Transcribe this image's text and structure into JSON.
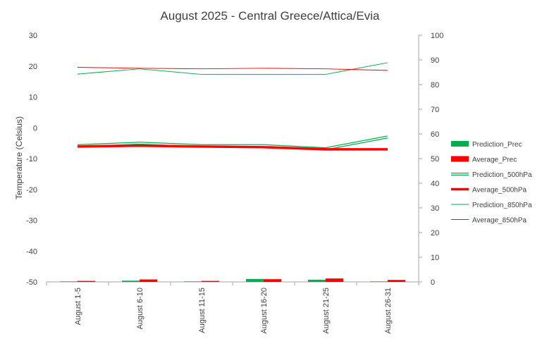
{
  "chart_data": {
    "type": "line",
    "title": "August 2025 - Central Greece/Attica/Evia",
    "ylabel": "Temperature  (Celsius)",
    "xlabel": "",
    "ylim": [
      -50,
      30
    ],
    "y2lim": [
      0,
      100
    ],
    "yticks": [
      "30",
      "20",
      "10",
      "0",
      "-10",
      "-20",
      "-30",
      "-40",
      "-50"
    ],
    "y2ticks": [
      "100",
      "90",
      "80",
      "70",
      "60",
      "50",
      "40",
      "30",
      "20",
      "10",
      "0"
    ],
    "categories": [
      "August 1-5",
      "August 6-10",
      "August 11-15",
      "August 16-20",
      "August 21-25",
      "August 26-31"
    ],
    "grid": false,
    "legend_position": "right",
    "series": [
      {
        "name": "Prediction_Prec",
        "kind": "bar",
        "axis": "right",
        "color": "#00b050",
        "values": [
          0.2,
          0.5,
          0.2,
          1.2,
          0.9,
          0.2
        ]
      },
      {
        "name": "Average_Prec",
        "kind": "bar",
        "axis": "right",
        "color": "#ff0000",
        "values": [
          0.4,
          1.0,
          0.4,
          1.1,
          1.4,
          0.8
        ]
      },
      {
        "name": "Prediction_500hPa",
        "kind": "double-line",
        "axis": "left",
        "color": "#00b050",
        "values": [
          -5.8,
          -5.0,
          -5.8,
          -5.8,
          -6.8,
          -3.0
        ]
      },
      {
        "name": "Average_500hPa",
        "kind": "thick-line",
        "axis": "left",
        "color": "#ff0000",
        "values": [
          -6.1,
          -5.8,
          -6.1,
          -6.3,
          -7.0,
          -7.0
        ]
      },
      {
        "name": "Prediction_850hPa",
        "kind": "line",
        "axis": "left",
        "color": "#00b050",
        "values": [
          17.4,
          19.1,
          17.3,
          17.3,
          17.3,
          21.1
        ]
      },
      {
        "name": "Average_850hPa",
        "kind": "line",
        "axis": "left",
        "color": "#ff0000",
        "values": [
          19.6,
          19.3,
          19.1,
          19.3,
          19.1,
          18.6
        ]
      }
    ]
  }
}
